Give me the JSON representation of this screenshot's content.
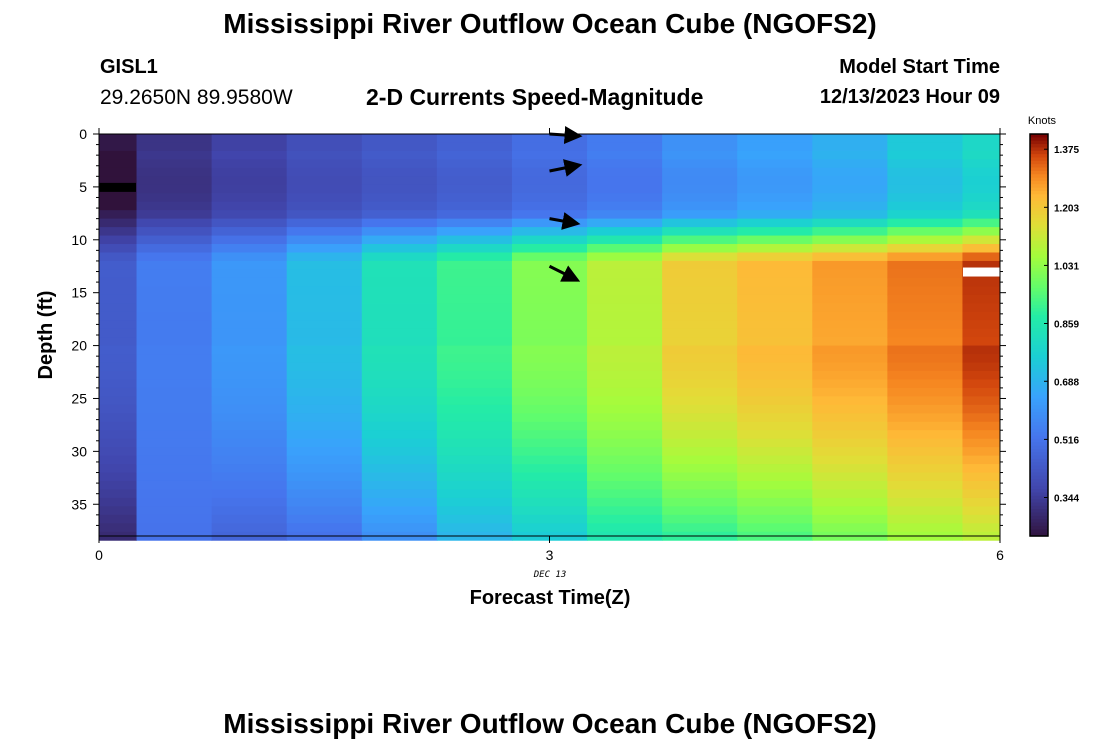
{
  "header": {
    "title": "Mississippi River Outflow Ocean Cube (NGOFS2)",
    "station_id": "GISL1",
    "coordinates": "29.2650N  89.9580W",
    "subtitle": "2-D Currents Speed-Magnitude",
    "model_start_label": "Model Start Time",
    "model_start_value": "12/13/2023 Hour 09"
  },
  "footer": {
    "title": "Mississippi River Outflow Ocean Cube (NGOFS2)"
  },
  "chart_data": {
    "type": "heatmap",
    "xlabel": "Forecast Time(Z)",
    "ylabel": "Depth (ft)",
    "date_label": "DEC 13",
    "xlim": [
      0,
      6
    ],
    "ylim": [
      38,
      0
    ],
    "x_ticks": [
      0,
      3,
      6
    ],
    "y_ticks": [
      0,
      5,
      10,
      15,
      20,
      25,
      30,
      35
    ],
    "colorbar": {
      "title": "Knots",
      "ticks": [
        "0.344",
        "0.516",
        "0.688",
        "0.859",
        "1.031",
        "1.203",
        "1.375"
      ],
      "range": [
        0.23,
        1.42
      ]
    },
    "time_columns": [
      0,
      0.5,
      1,
      1.5,
      2,
      2.5,
      3,
      3.5,
      4,
      4.5,
      5,
      5.5,
      6
    ],
    "column_speed_upper_layer": [
      0.26,
      0.34,
      0.38,
      0.42,
      0.45,
      0.48,
      0.52,
      0.56,
      0.62,
      0.66,
      0.7,
      0.77,
      0.82
    ],
    "column_speed_lower_layer": [
      0.45,
      0.55,
      0.62,
      0.72,
      0.84,
      0.92,
      1.02,
      1.1,
      1.2,
      1.24,
      1.28,
      1.32,
      1.38
    ],
    "column_speed_bottom": [
      0.3,
      0.52,
      0.48,
      0.52,
      0.6,
      0.7,
      0.76,
      0.86,
      0.9,
      0.94,
      1.0,
      1.06,
      1.1
    ],
    "vectors": [
      {
        "time": 3,
        "depth": 0
      },
      {
        "time": 3,
        "depth": 3.5
      },
      {
        "time": 3,
        "depth": 8
      },
      {
        "time": 3,
        "depth": 12.5
      }
    ],
    "missing_cells": [
      {
        "time": 0,
        "depth": 5,
        "color": "#000000"
      },
      {
        "time": 6,
        "depth": 13,
        "color": "#ffffff"
      }
    ]
  }
}
